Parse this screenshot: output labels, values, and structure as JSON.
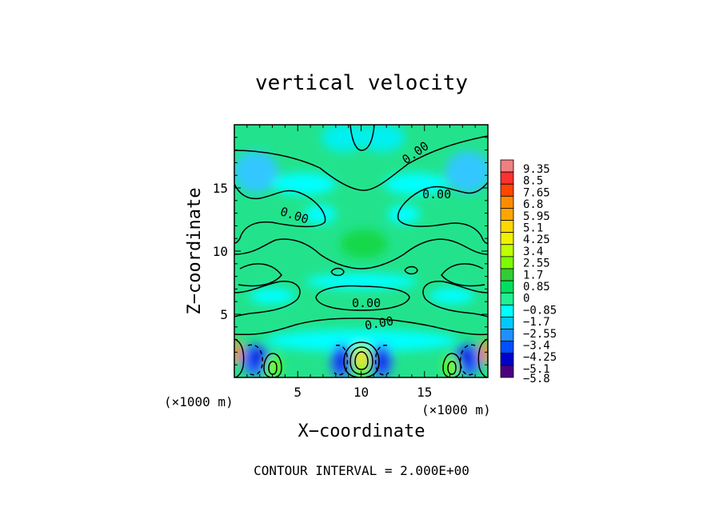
{
  "chart_data": {
    "type": "heatmap",
    "title": "vertical velocity",
    "xlabel": "X−coordinate",
    "ylabel": "Z−coordinate",
    "x_unit": "(×1000 m)",
    "z_unit": "(×1000 m)",
    "xlim": [
      0,
      20
    ],
    "ylim": [
      0,
      20
    ],
    "x_ticks": [
      5,
      10,
      15
    ],
    "y_ticks": [
      5,
      10,
      15
    ],
    "colorbar": {
      "labels": [
        "9.35",
        "8.5",
        "7.65",
        "6.8",
        "5.95",
        "5.1",
        "4.25",
        "3.4",
        "2.55",
        "1.7",
        "0.85",
        "0",
        "−0.85",
        "−1.7",
        "−2.55",
        "−3.4",
        "−4.25",
        "−5.1",
        "−5.8"
      ],
      "levels": [
        9.35,
        8.5,
        7.65,
        6.8,
        5.95,
        5.1,
        4.25,
        3.4,
        2.55,
        1.7,
        0.85,
        0,
        -0.85,
        -1.7,
        -2.55,
        -3.4,
        -4.25,
        -5.1,
        -5.8
      ],
      "colors": [
        "#f08080",
        "#ff3030",
        "#ff4500",
        "#ff8c00",
        "#ffa500",
        "#ffd700",
        "#f0f000",
        "#bfff00",
        "#7cfc00",
        "#32cd32",
        "#00e060",
        "#20f090",
        "#00ffff",
        "#00c8ff",
        "#1e90ff",
        "#0050ff",
        "#0000cd",
        "#4b0082"
      ]
    },
    "contour_labels": [
      "0.00",
      "0.00",
      "0.00",
      "0.00",
      "0.00"
    ],
    "contour_interval_text": "CONTOUR INTERVAL = 2.000E+00",
    "features": [
      {
        "x": 10.0,
        "z": 1.7,
        "value": 6.0
      },
      {
        "x": 3.0,
        "z": 1.0,
        "value": 3.5
      },
      {
        "x": 17.3,
        "z": 1.0,
        "value": 3.5
      },
      {
        "x": 0.2,
        "z": 2.0,
        "value": 4.0
      },
      {
        "x": 19.8,
        "z": 2.0,
        "value": 4.0
      },
      {
        "x": 1.5,
        "z": 1.8,
        "value": -4.5
      },
      {
        "x": 8.2,
        "z": 1.8,
        "value": -4.0
      },
      {
        "x": 11.8,
        "z": 1.8,
        "value": -4.0
      },
      {
        "x": 18.5,
        "z": 1.8,
        "value": -4.5
      }
    ]
  }
}
